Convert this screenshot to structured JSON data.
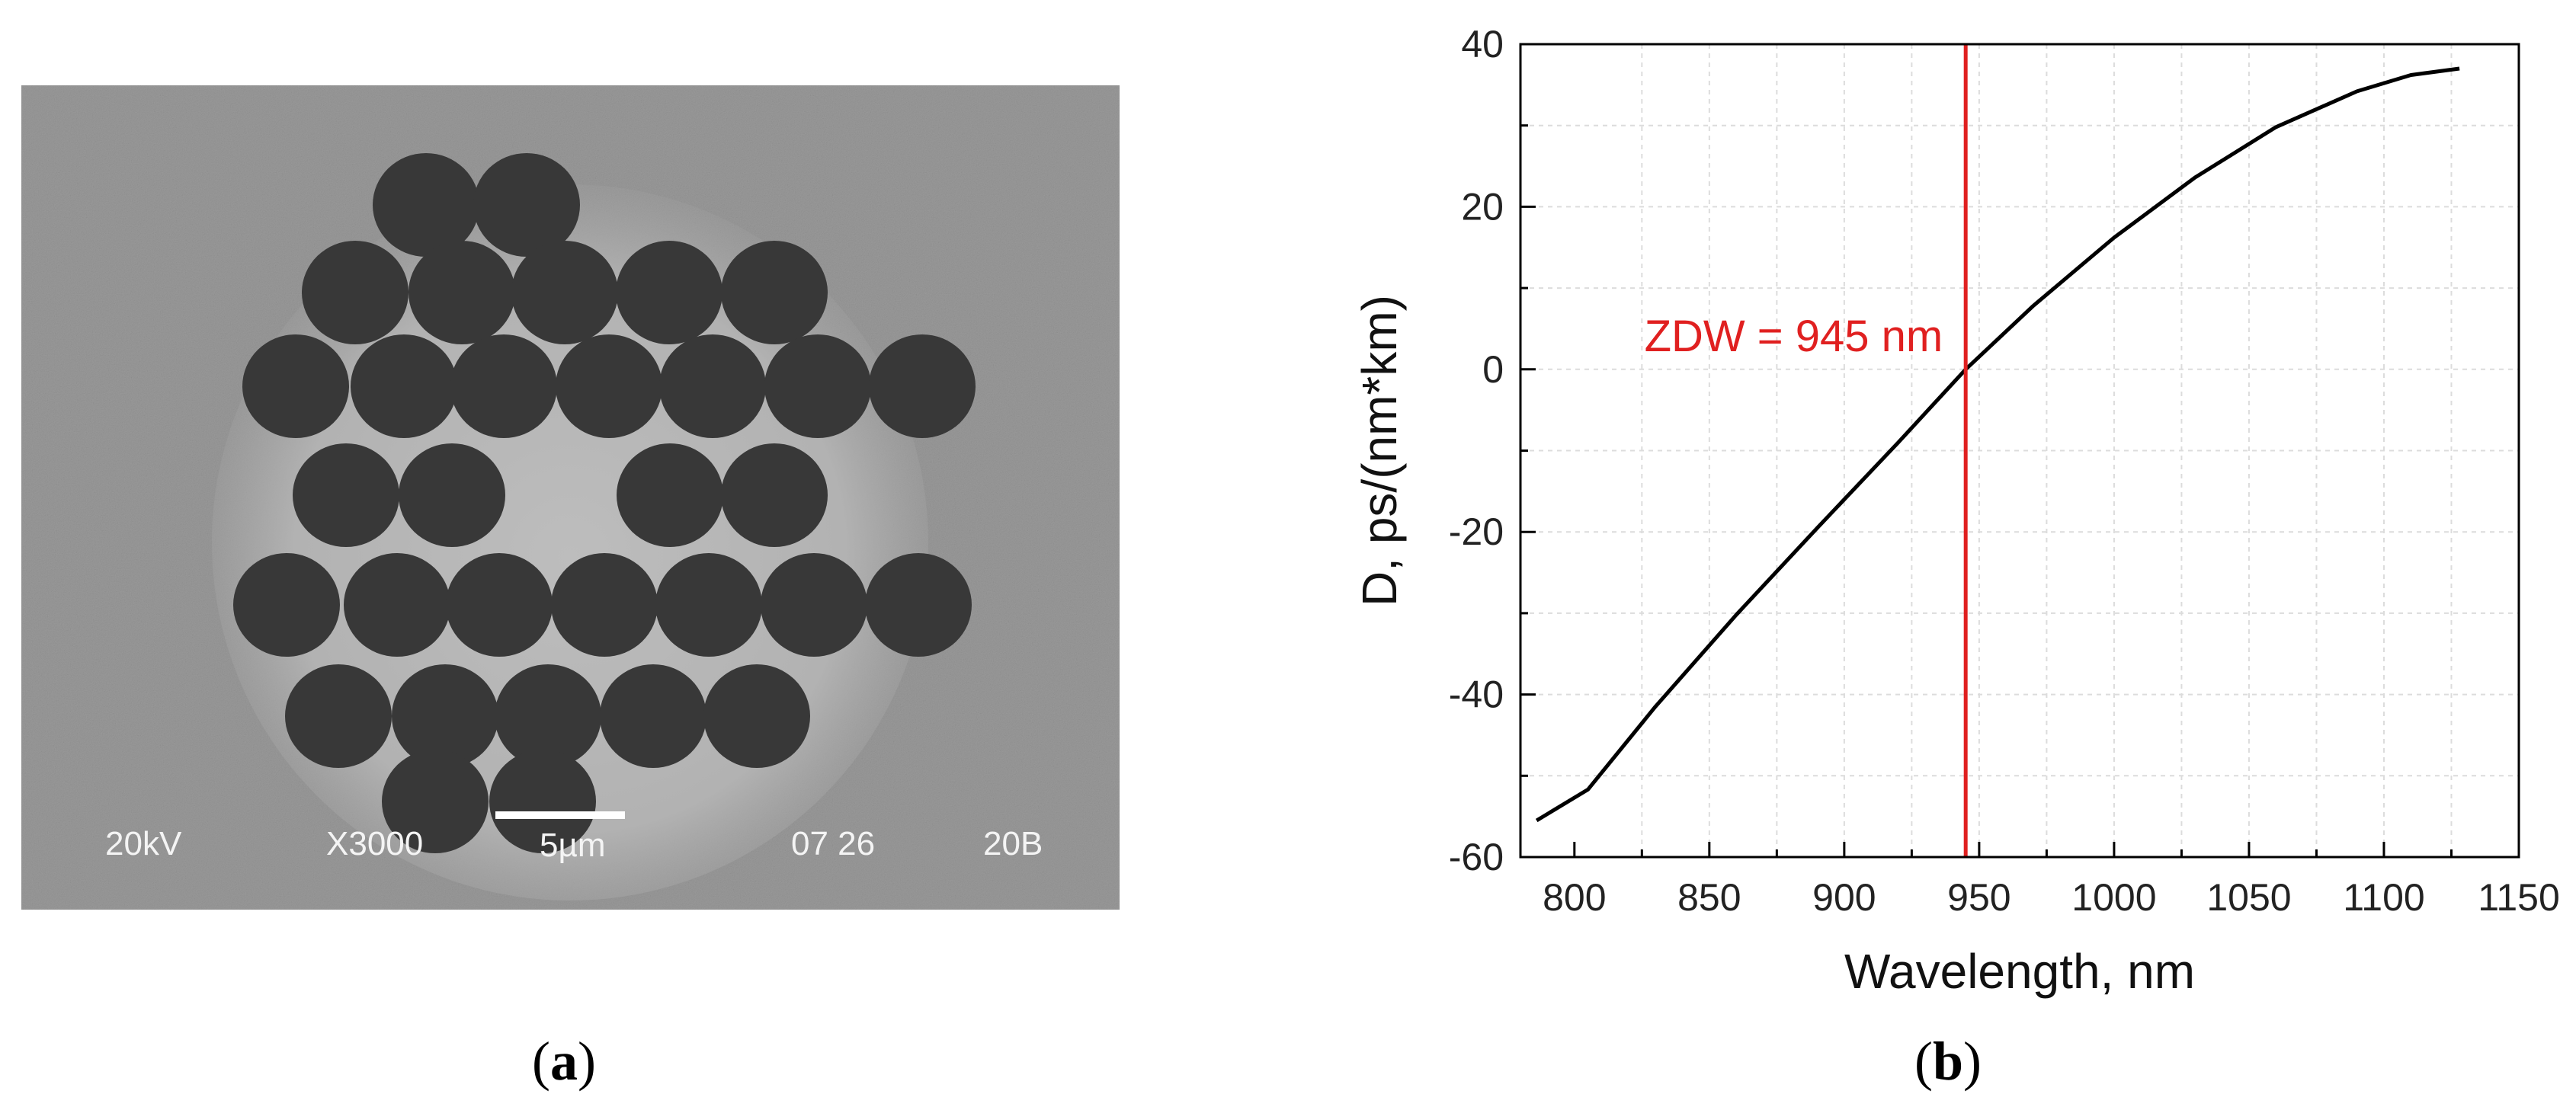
{
  "figure": {
    "panel_a_label": "a",
    "panel_b_label": "b"
  },
  "sem_image": {
    "voltage": "20kV",
    "magnification": "X3000",
    "scale_bar_label": "5µm",
    "code1": "07 26",
    "code2": "20B"
  },
  "chart_data": {
    "type": "line",
    "title": "",
    "xlabel": "Wavelength, nm",
    "ylabel": "D, ps/(nm*km)",
    "xlim": [
      780,
      1150
    ],
    "ylim": [
      -60,
      40
    ],
    "xticks": [
      800,
      850,
      900,
      950,
      1000,
      1050,
      1100,
      1150
    ],
    "yticks": [
      -60,
      -40,
      -20,
      0,
      20,
      40
    ],
    "grid": true,
    "series": [
      {
        "color": "#000000",
        "x": [
          786,
          805,
          830,
          860,
          890,
          920,
          945,
          970,
          1000,
          1030,
          1060,
          1090,
          1110,
          1128
        ],
        "y": [
          -55.5,
          -51.7,
          -41.5,
          -30.2,
          -19.5,
          -9.0,
          0,
          7.8,
          16.2,
          23.6,
          29.8,
          34.2,
          36.2,
          37.0
        ]
      }
    ],
    "annotations": [
      {
        "type": "vline",
        "x": 945,
        "color": "#e02020",
        "label": "ZDW = 945 nm"
      }
    ]
  }
}
